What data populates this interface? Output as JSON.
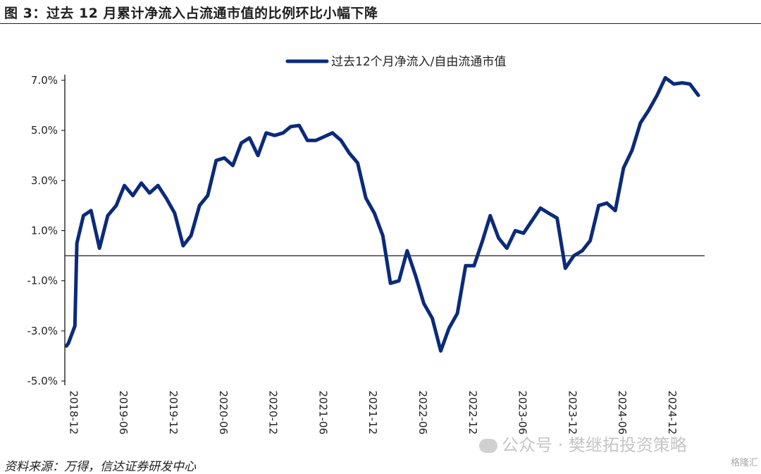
{
  "figure": {
    "title": "图 3：过去 12 月累计净流入占流通市值的比例环比小幅下降",
    "source": "资料来源：万得，信达证券研发中心"
  },
  "watermark": {
    "text": "公众号 · 樊继拓投资策略",
    "corner": "格隆汇"
  },
  "colors": {
    "series": "#0b2a7a",
    "axis": "#000000"
  },
  "chart_data": {
    "type": "line",
    "title": "",
    "xlabel": "",
    "ylabel": "",
    "ylim": [
      -5.0,
      7.0
    ],
    "yticks": [
      -5.0,
      -3.0,
      -1.0,
      1.0,
      3.0,
      5.0,
      7.0
    ],
    "ytick_labels": [
      "-5.0%",
      "-3.0%",
      "-1.0%",
      "1.0%",
      "3.0%",
      "5.0%",
      "7.0%"
    ],
    "xtick_labels": [
      "2018-12",
      "2019-06",
      "2019-12",
      "2020-06",
      "2020-12",
      "2021-06",
      "2021-12",
      "2022-06",
      "2022-12",
      "2023-06",
      "2023-12",
      "2024-06",
      "2024-12"
    ],
    "legend_position": "top",
    "series": [
      {
        "name": "过去12个月净流入/自由流通市值",
        "values": [
          {
            "x": "2018-12-07",
            "y": -3.6
          },
          {
            "x": "2018-12-14",
            "y": -3.5
          },
          {
            "x": "2019-01-07",
            "y": -2.8
          },
          {
            "x": "2019-01-14",
            "y": 0.5
          },
          {
            "x": "2019-02-07",
            "y": 1.6
          },
          {
            "x": "2019-03-07",
            "y": 1.8
          },
          {
            "x": "2019-04-07",
            "y": 0.3
          },
          {
            "x": "2019-05-07",
            "y": 1.6
          },
          {
            "x": "2019-06-07",
            "y": 2.0
          },
          {
            "x": "2019-07-07",
            "y": 2.8
          },
          {
            "x": "2019-08-07",
            "y": 2.4
          },
          {
            "x": "2019-09-07",
            "y": 2.9
          },
          {
            "x": "2019-10-07",
            "y": 2.5
          },
          {
            "x": "2019-11-07",
            "y": 2.8
          },
          {
            "x": "2019-12-07",
            "y": 2.3
          },
          {
            "x": "2020-01-07",
            "y": 1.7
          },
          {
            "x": "2020-02-07",
            "y": 0.4
          },
          {
            "x": "2020-03-07",
            "y": 0.8
          },
          {
            "x": "2020-04-07",
            "y": 2.0
          },
          {
            "x": "2020-05-07",
            "y": 2.4
          },
          {
            "x": "2020-06-07",
            "y": 3.8
          },
          {
            "x": "2020-07-07",
            "y": 3.9
          },
          {
            "x": "2020-08-07",
            "y": 3.6
          },
          {
            "x": "2020-09-07",
            "y": 4.5
          },
          {
            "x": "2020-10-07",
            "y": 4.7
          },
          {
            "x": "2020-11-07",
            "y": 4.0
          },
          {
            "x": "2020-12-07",
            "y": 4.9
          },
          {
            "x": "2021-01-07",
            "y": 4.8
          },
          {
            "x": "2021-02-07",
            "y": 4.9
          },
          {
            "x": "2021-03-07",
            "y": 5.15
          },
          {
            "x": "2021-04-07",
            "y": 5.2
          },
          {
            "x": "2021-05-07",
            "y": 4.6
          },
          {
            "x": "2021-06-07",
            "y": 4.6
          },
          {
            "x": "2021-07-07",
            "y": 4.75
          },
          {
            "x": "2021-08-07",
            "y": 4.9
          },
          {
            "x": "2021-09-07",
            "y": 4.6
          },
          {
            "x": "2021-10-07",
            "y": 4.1
          },
          {
            "x": "2021-11-07",
            "y": 3.7
          },
          {
            "x": "2021-12-07",
            "y": 2.3
          },
          {
            "x": "2022-01-07",
            "y": 1.7
          },
          {
            "x": "2022-02-07",
            "y": 0.8
          },
          {
            "x": "2022-03-07",
            "y": -1.1
          },
          {
            "x": "2022-04-07",
            "y": -1.0
          },
          {
            "x": "2022-05-07",
            "y": 0.2
          },
          {
            "x": "2022-06-07",
            "y": -0.8
          },
          {
            "x": "2022-07-07",
            "y": -1.9
          },
          {
            "x": "2022-08-07",
            "y": -2.5
          },
          {
            "x": "2022-09-07",
            "y": -3.8
          },
          {
            "x": "2022-10-07",
            "y": -2.9
          },
          {
            "x": "2022-11-07",
            "y": -2.3
          },
          {
            "x": "2022-12-07",
            "y": -0.4
          },
          {
            "x": "2023-01-07",
            "y": -0.4
          },
          {
            "x": "2023-02-07",
            "y": 0.6
          },
          {
            "x": "2023-03-07",
            "y": 1.6
          },
          {
            "x": "2023-04-07",
            "y": 0.7
          },
          {
            "x": "2023-05-07",
            "y": 0.3
          },
          {
            "x": "2023-06-07",
            "y": 1.0
          },
          {
            "x": "2023-07-07",
            "y": 0.9
          },
          {
            "x": "2023-08-07",
            "y": 1.4
          },
          {
            "x": "2023-09-07",
            "y": 1.9
          },
          {
            "x": "2023-10-07",
            "y": 1.7
          },
          {
            "x": "2023-11-07",
            "y": 1.5
          },
          {
            "x": "2023-12-07",
            "y": -0.5
          },
          {
            "x": "2024-01-07",
            "y": 0.0
          },
          {
            "x": "2024-02-07",
            "y": 0.2
          },
          {
            "x": "2024-03-07",
            "y": 0.6
          },
          {
            "x": "2024-04-07",
            "y": 2.0
          },
          {
            "x": "2024-05-07",
            "y": 2.1
          },
          {
            "x": "2024-06-07",
            "y": 1.8
          },
          {
            "x": "2024-07-07",
            "y": 3.5
          },
          {
            "x": "2024-08-07",
            "y": 4.2
          },
          {
            "x": "2024-09-07",
            "y": 5.3
          },
          {
            "x": "2024-10-07",
            "y": 5.8
          },
          {
            "x": "2024-11-07",
            "y": 6.4
          },
          {
            "x": "2024-12-07",
            "y": 7.1
          },
          {
            "x": "2025-01-07",
            "y": 6.85
          },
          {
            "x": "2025-02-07",
            "y": 6.9
          },
          {
            "x": "2025-03-07",
            "y": 6.85
          },
          {
            "x": "2025-04-07",
            "y": 6.4
          }
        ]
      }
    ]
  }
}
